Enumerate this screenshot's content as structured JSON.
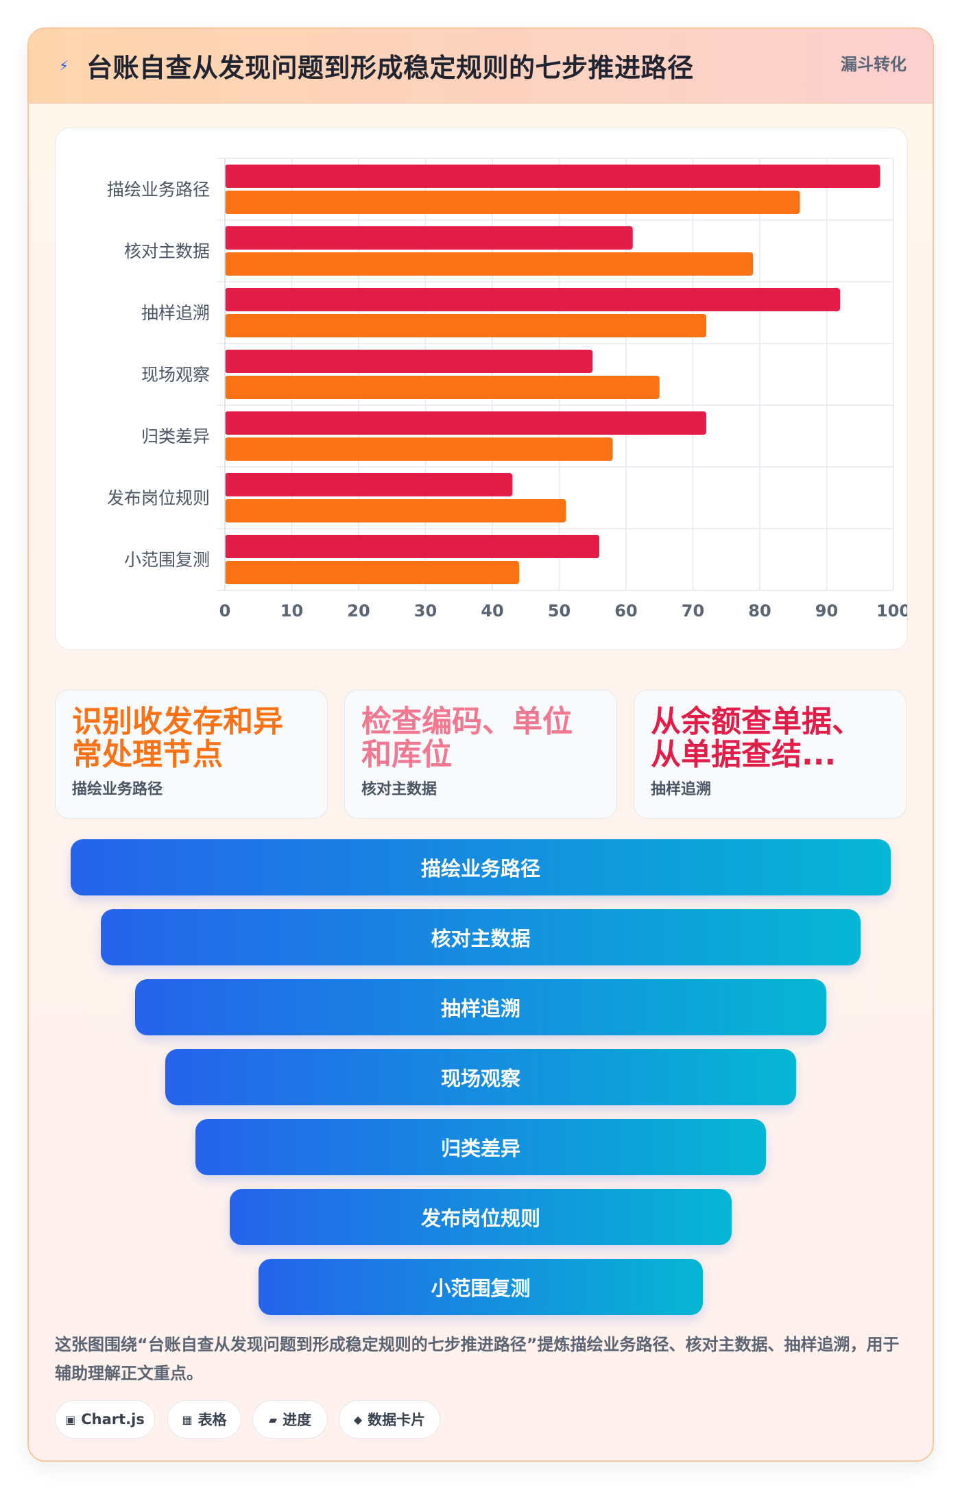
{
  "header": {
    "icon": "lightning-icon",
    "title": "台账自查从发现问题到形成稳定规则的七步推进路径",
    "tag": "漏斗转化"
  },
  "chart_data": {
    "type": "bar",
    "orientation": "horizontal",
    "categories": [
      "描绘业务路径",
      "核对主数据",
      "抽样追溯",
      "现场观察",
      "归类差异",
      "发布岗位规则",
      "小范围复测"
    ],
    "series": [
      {
        "color": "#e11d48",
        "values": [
          98,
          61,
          92,
          55,
          72,
          43,
          56
        ]
      },
      {
        "color": "#f97316",
        "values": [
          86,
          79,
          72,
          65,
          58,
          51,
          44
        ]
      }
    ],
    "xlim": [
      0,
      100
    ],
    "xticks": [
      0,
      10,
      20,
      30,
      40,
      50,
      60,
      70,
      80,
      90,
      100
    ],
    "grid": true,
    "legend": "none"
  },
  "kpis": [
    {
      "value": "识别收发存和异常处理节点",
      "label": "描绘业务路径",
      "color": "#f97316"
    },
    {
      "value": "检查编码、单位和库位",
      "label": "核对主数据",
      "color": "#f07890"
    },
    {
      "value": "从余额查单据、从单据查结...",
      "label": "抽样追溯",
      "color": "#e11d48"
    }
  ],
  "funnel": [
    "描绘业务路径",
    "核对主数据",
    "抽样追溯",
    "现场观察",
    "归类差异",
    "发布岗位规则",
    "小范围复测"
  ],
  "description": "这张图围绕“台账自查从发现问题到形成稳定规则的七步推进路径”提炼描绘业务路径、核对主数据、抽样追溯，用于辅助理解正文重点。",
  "chips": [
    {
      "icon": "▣",
      "label": "Chart.js"
    },
    {
      "icon": "▦",
      "label": "表格"
    },
    {
      "icon": "▰",
      "label": "进度"
    },
    {
      "icon": "◆",
      "label": "数据卡片"
    }
  ]
}
